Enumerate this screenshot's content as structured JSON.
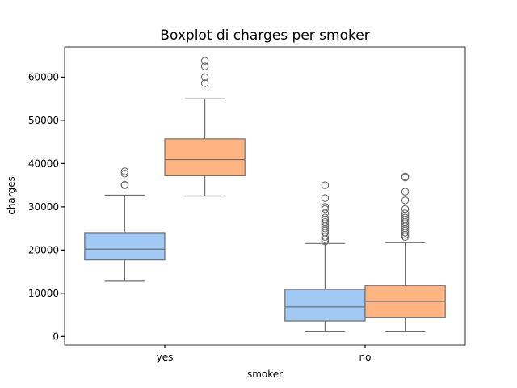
{
  "chart_data": {
    "type": "box",
    "title": "Boxplot di charges per smoker",
    "xlabel": "smoker",
    "ylabel": "charges",
    "categories": [
      "yes",
      "no"
    ],
    "ylim": [
      -2000,
      67000
    ],
    "yticks": [
      0,
      10000,
      20000,
      30000,
      40000,
      50000,
      60000
    ],
    "ytick_labels": [
      "0",
      "10000",
      "20000",
      "30000",
      "40000",
      "50000",
      "60000"
    ],
    "grid": false,
    "legend": null,
    "series": [
      {
        "color": "#a1c9f4",
        "boxes": [
          {
            "category": "yes",
            "whisker_low": 12800,
            "q1": 17700,
            "median": 20200,
            "q3": 24000,
            "whisker_high": 32700,
            "outliers": [
              35000,
              35100,
              37700,
              38200
            ]
          },
          {
            "category": "no",
            "whisker_low": 1100,
            "q1": 3600,
            "median": 6800,
            "q3": 10900,
            "whisker_high": 21500,
            "outliers": [
              22000,
              22500,
              23000,
              24000,
              24500,
              25000,
              25500,
              26000,
              26500,
              27000,
              27500,
              28500,
              29500,
              30000,
              32000,
              35000
            ]
          }
        ]
      },
      {
        "color": "#ffb482",
        "boxes": [
          {
            "category": "yes",
            "whisker_low": 32500,
            "q1": 37200,
            "median": 40900,
            "q3": 45700,
            "whisker_high": 55000,
            "outliers": [
              58600,
              60000,
              62500,
              63800
            ]
          },
          {
            "category": "no",
            "whisker_low": 1100,
            "q1": 4400,
            "median": 8100,
            "q3": 11800,
            "whisker_high": 21700,
            "outliers": [
              23000,
              23500,
              24000,
              24500,
              25000,
              25500,
              26000,
              26500,
              27000,
              27500,
              28000,
              28500,
              29500,
              31500,
              33500,
              36800,
              37000
            ]
          }
        ]
      }
    ]
  }
}
